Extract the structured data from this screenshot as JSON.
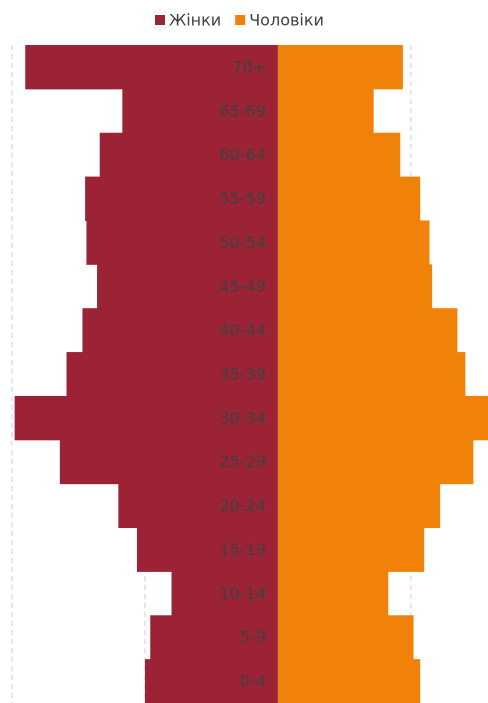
{
  "chart_data": {
    "type": "pyramid",
    "categories": [
      "0-4",
      "5-9",
      "10-14",
      "15-19",
      "20-24",
      "25-29",
      "30-34",
      "35-39",
      "40-44",
      "45-49",
      "50-54",
      "55-59",
      "60-64",
      "65-69",
      "70+"
    ],
    "series": [
      {
        "name": "Жінки",
        "color": "#9b2335",
        "values": [
          -100,
          -96,
          -80,
          -106,
          -120,
          -164,
          -198,
          -159,
          -147,
          -136,
          -144,
          -145,
          -134,
          -117,
          -190
        ]
      },
      {
        "name": "Чоловіки",
        "color": "#f0820a",
        "values": [
          107,
          102,
          83,
          110,
          122,
          147,
          158,
          141,
          135,
          116,
          114,
          107,
          92,
          72,
          94
        ]
      }
    ],
    "xlim": [
      -209,
      158
    ],
    "xticks": [
      -200,
      -100,
      0,
      100
    ],
    "grid": true
  }
}
